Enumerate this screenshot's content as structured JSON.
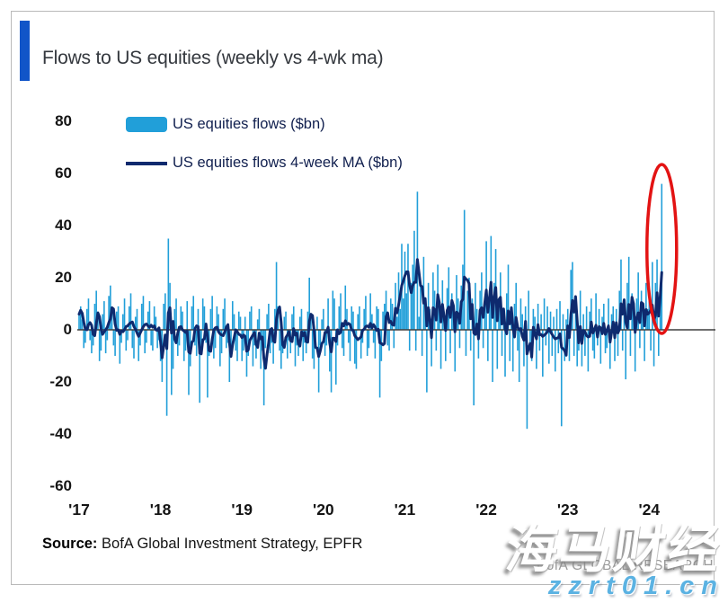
{
  "header": {
    "title": "Flows to US equities (weekly vs 4-wk ma)"
  },
  "legend": {
    "bars_label": "US equities flows ($bn)",
    "line_label": "US equities flows 4-week MA ($bn)"
  },
  "source": {
    "label": "Source:",
    "text": " BofA Global Investment Strategy, EPFR"
  },
  "branding": {
    "research_credit": "BofA GLOBAL RESEARCH"
  },
  "watermark": {
    "cn_text": "海马财经",
    "site_text": "zzrt01.cn"
  },
  "colors": {
    "accent": "#1155c8",
    "bar": "#219fd9",
    "line": "#0e2a6e",
    "zero_axis": "#3f3f3f",
    "highlight": "#e31313",
    "watermark_site": "#5bb2e2"
  },
  "chart_data": {
    "type": "bar",
    "title": "Flows to US equities (weekly vs 4-wk ma)",
    "xlabel": "",
    "ylabel": "",
    "units": "$bn",
    "ylim": [
      -60,
      80
    ],
    "grid": false,
    "legend_position": "top-left",
    "y_ticks": [
      80,
      60,
      40,
      20,
      0,
      -20,
      -40,
      -60
    ],
    "x_ticks": [
      "'17",
      "'18",
      "'19",
      "'20",
      "'21",
      "'22",
      "'23",
      "'24"
    ],
    "line_series_note": "4-week trailing moving average derived from weekly values",
    "annotation": {
      "shape": "ellipse",
      "target": "final weekly bar (+56)",
      "color": "#e31313"
    },
    "series_weekly_by_year": [
      {
        "year": "2017",
        "values": [
          6,
          9,
          4,
          -7,
          -5,
          8,
          12,
          -4,
          -9,
          -6,
          10,
          15,
          7,
          -12,
          -8,
          6,
          11,
          -9,
          -4,
          13,
          17,
          8,
          -6,
          -10,
          7,
          9,
          -13,
          -5,
          6,
          12,
          -8,
          -4,
          9,
          14,
          -7,
          -11,
          5,
          8,
          -12,
          -6,
          10,
          13,
          -9,
          -5,
          7,
          11,
          -6,
          -8,
          9,
          5,
          -7,
          -4
        ]
      },
      {
        "year": "2018",
        "values": [
          -12,
          -20,
          10,
          14,
          -33,
          35,
          18,
          -25,
          -15,
          8,
          12,
          -10,
          -6,
          9,
          7,
          -12,
          -8,
          11,
          -25,
          -14,
          9,
          13,
          -6,
          -10,
          8,
          -28,
          -7,
          12,
          9,
          -5,
          -26,
          -10,
          8,
          13,
          -11,
          -7,
          9,
          6,
          -14,
          -9,
          8,
          12,
          -7,
          -5,
          -20,
          -9,
          11,
          6,
          -8,
          -12,
          7,
          5
        ]
      },
      {
        "year": "2019",
        "values": [
          -12,
          -8,
          5,
          -18,
          -10,
          7,
          9,
          -14,
          -6,
          -11,
          4,
          8,
          -15,
          -8,
          -29,
          -7,
          6,
          10,
          -9,
          -5,
          -13,
          8,
          26,
          9,
          -8,
          -15,
          -9,
          5,
          7,
          -11,
          -4,
          -9,
          6,
          9,
          -14,
          -6,
          -10,
          5,
          8,
          -12,
          -5,
          -9,
          7,
          20,
          6,
          -11,
          -15,
          -7,
          5,
          -24,
          -6,
          4
        ]
      },
      {
        "year": "2020",
        "values": [
          8,
          -10,
          -6,
          12,
          -16,
          -24,
          15,
          12,
          -21,
          -6,
          9,
          14,
          -7,
          -10,
          17,
          8,
          -5,
          -12,
          9,
          7,
          -13,
          -15,
          6,
          9,
          -11,
          -5,
          8,
          13,
          -10,
          -7,
          14,
          6,
          -5,
          -11,
          9,
          8,
          -26,
          -12,
          7,
          10,
          15,
          -6,
          -8,
          12,
          10,
          -7,
          18,
          5,
          22,
          8,
          33,
          12
        ]
      },
      {
        "year": "2021",
        "values": [
          30,
          14,
          33,
          -8,
          18,
          25,
          38,
          -8,
          53,
          5,
          18,
          -10,
          28,
          12,
          -24,
          18,
          8,
          -14,
          22,
          15,
          -8,
          25,
          10,
          -15,
          19,
          7,
          -12,
          16,
          24,
          -9,
          14,
          8,
          -16,
          21,
          12,
          -7,
          17,
          25,
          46,
          -10,
          15,
          20,
          -8,
          12,
          -29,
          18,
          8,
          -11,
          15,
          22,
          -7,
          12
        ]
      },
      {
        "year": "2022",
        "values": [
          34,
          -12,
          15,
          36,
          -20,
          18,
          31,
          -15,
          12,
          22,
          -10,
          8,
          -18,
          14,
          25,
          -12,
          7,
          -16,
          10,
          18,
          -8,
          -20,
          12,
          6,
          -14,
          9,
          -38,
          15,
          -7,
          -12,
          8,
          5,
          -15,
          10,
          -8,
          6,
          -18,
          12,
          -6,
          9,
          -13,
          7,
          -10,
          5,
          -16,
          8,
          -9,
          11,
          -37,
          6,
          -12,
          4
        ]
      },
      {
        "year": "2023",
        "values": [
          8,
          -12,
          23,
          26,
          -10,
          12,
          -14,
          -8,
          15,
          -14,
          6,
          -10,
          9,
          -16,
          7,
          12,
          -8,
          -11,
          14,
          -6,
          8,
          -13,
          5,
          10,
          -9,
          -7,
          12,
          -15,
          6,
          9,
          -12,
          8,
          -10,
          15,
          27,
          -8,
          12,
          -19,
          18,
          28,
          -10,
          14,
          8,
          -16,
          12,
          22,
          -7,
          15,
          10,
          -12,
          18,
          8
        ]
      },
      {
        "year": "2024",
        "values": [
          12,
          -8,
          26,
          -14,
          18,
          27,
          -10,
          15,
          56
        ]
      }
    ]
  }
}
